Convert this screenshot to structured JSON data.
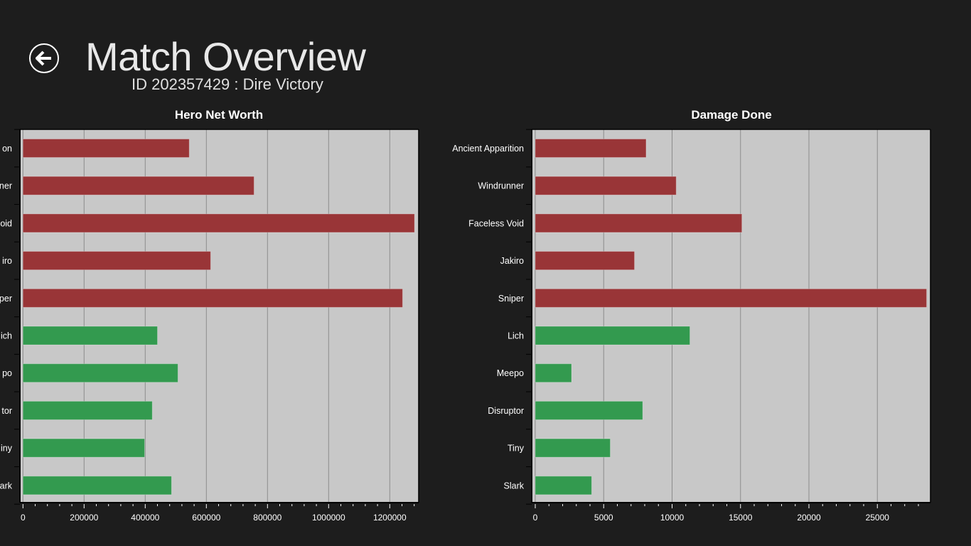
{
  "header": {
    "back_icon": "back-arrow-circle-icon",
    "title": "Match Overview",
    "subtitle": "ID 202357429 : Dire Victory"
  },
  "colors": {
    "background": "#1d1d1d",
    "plot_background": "#c8c8c8",
    "dire": "#993537",
    "radiant": "#339a4f",
    "gridline": "#8c8c8c"
  },
  "chart_data": [
    {
      "id": "net-worth",
      "type": "bar",
      "orientation": "horizontal",
      "title": "Hero Net Worth",
      "xlabel": "",
      "ylabel": "",
      "grid": true,
      "xlim": [
        0,
        1300000
      ],
      "xticks": [
        0,
        200000,
        400000,
        600000,
        800000,
        1000000,
        1200000
      ],
      "xtick_labels": [
        "0",
        "200000",
        "400000",
        "600000",
        "800000",
        "1000000",
        "1200000"
      ],
      "minor_tick_step": 40000,
      "categories": [
        "Ancient Apparition",
        "Windrunner",
        "Faceless Void",
        "Jakiro",
        "Sniper",
        "Lich",
        "Meepo",
        "Disruptor",
        "Tiny",
        "Slark"
      ],
      "category_labels_visible": [
        "on",
        "ner",
        "oid",
        "iro",
        "per",
        "ich",
        "po",
        "tor",
        "iny",
        "ark"
      ],
      "teams": [
        "dire",
        "dire",
        "dire",
        "dire",
        "dire",
        "radiant",
        "radiant",
        "radiant",
        "radiant",
        "radiant"
      ],
      "values": [
        544000,
        756000,
        1281000,
        614000,
        1242000,
        440000,
        507000,
        423000,
        398000,
        486000
      ]
    },
    {
      "id": "damage-done",
      "type": "bar",
      "orientation": "horizontal",
      "title": "Damage Done",
      "xlabel": "",
      "ylabel": "",
      "grid": true,
      "xlim": [
        0,
        28800
      ],
      "xticks": [
        0,
        5000,
        10000,
        15000,
        20000,
        25000
      ],
      "xtick_labels": [
        "0",
        "5000",
        "10000",
        "15000",
        "20000",
        "25000"
      ],
      "minor_tick_step": 1000,
      "categories": [
        "Ancient Apparition",
        "Windrunner",
        "Faceless Void",
        "Jakiro",
        "Sniper",
        "Lich",
        "Meepo",
        "Disruptor",
        "Tiny",
        "Slark"
      ],
      "category_labels_visible": [
        "Ancient Apparition",
        "Windrunner",
        "Faceless Void",
        "Jakiro",
        "Sniper",
        "Lich",
        "Meepo",
        "Disruptor",
        "Tiny",
        "Slark"
      ],
      "teams": [
        "dire",
        "dire",
        "dire",
        "dire",
        "dire",
        "radiant",
        "radiant",
        "radiant",
        "radiant",
        "radiant"
      ],
      "values": [
        8100,
        10300,
        15100,
        7250,
        28600,
        11300,
        2650,
        7850,
        5480,
        4120
      ]
    }
  ]
}
